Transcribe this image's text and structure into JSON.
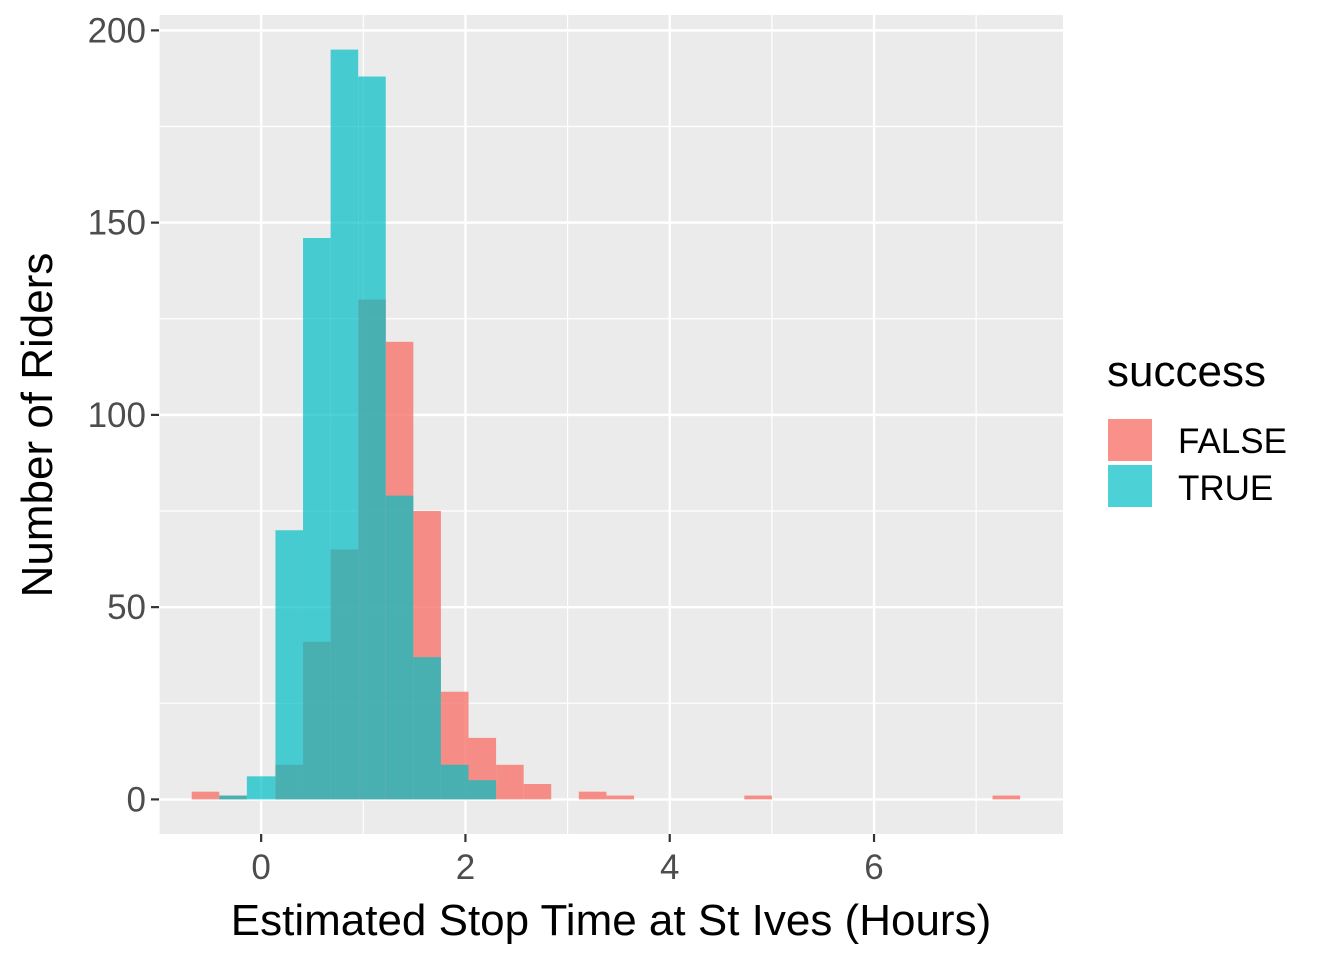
{
  "chart_data": {
    "type": "bar",
    "subtype": "overlapping-histogram",
    "title": "",
    "xlabel": "Estimated Stop Time at St Ives (Hours)",
    "ylabel": "Number of Riders",
    "xlim": [
      -1.0,
      7.85
    ],
    "ylim": [
      -9,
      204
    ],
    "x_ticks": [
      0,
      2,
      4,
      6
    ],
    "y_ticks": [
      0,
      50,
      100,
      150,
      200
    ],
    "grid": true,
    "bin_width": 0.27,
    "legend": {
      "title": "success",
      "position": "right",
      "entries": [
        "FALSE",
        "TRUE"
      ]
    },
    "series": [
      {
        "name": "FALSE",
        "color": "#F8766D",
        "bins": [
          {
            "x0": -0.68,
            "x1": -0.41,
            "value": 2
          },
          {
            "x0": -0.41,
            "x1": -0.14,
            "value": 1
          },
          {
            "x0": 0.14,
            "x1": 0.41,
            "value": 9
          },
          {
            "x0": 0.41,
            "x1": 0.68,
            "value": 41
          },
          {
            "x0": 0.68,
            "x1": 0.95,
            "value": 65
          },
          {
            "x0": 0.95,
            "x1": 1.22,
            "value": 130
          },
          {
            "x0": 1.22,
            "x1": 1.49,
            "value": 119
          },
          {
            "x0": 1.49,
            "x1": 1.76,
            "value": 75
          },
          {
            "x0": 1.76,
            "x1": 2.03,
            "value": 28
          },
          {
            "x0": 2.03,
            "x1": 2.3,
            "value": 16
          },
          {
            "x0": 2.3,
            "x1": 2.57,
            "value": 9
          },
          {
            "x0": 2.57,
            "x1": 2.84,
            "value": 4
          },
          {
            "x0": 3.11,
            "x1": 3.38,
            "value": 2
          },
          {
            "x0": 3.38,
            "x1": 3.65,
            "value": 1
          },
          {
            "x0": 4.73,
            "x1": 5.0,
            "value": 1
          },
          {
            "x0": 7.16,
            "x1": 7.43,
            "value": 1
          }
        ]
      },
      {
        "name": "TRUE",
        "color": "#00BFC4",
        "bins": [
          {
            "x0": -0.41,
            "x1": -0.14,
            "value": 1
          },
          {
            "x0": -0.14,
            "x1": 0.14,
            "value": 6
          },
          {
            "x0": 0.14,
            "x1": 0.41,
            "value": 70
          },
          {
            "x0": 0.41,
            "x1": 0.68,
            "value": 146
          },
          {
            "x0": 0.68,
            "x1": 0.95,
            "value": 195
          },
          {
            "x0": 0.95,
            "x1": 1.22,
            "value": 188
          },
          {
            "x0": 1.22,
            "x1": 1.49,
            "value": 79
          },
          {
            "x0": 1.49,
            "x1": 1.76,
            "value": 37
          },
          {
            "x0": 1.76,
            "x1": 2.03,
            "value": 9
          },
          {
            "x0": 2.03,
            "x1": 2.3,
            "value": 5
          }
        ]
      }
    ]
  }
}
